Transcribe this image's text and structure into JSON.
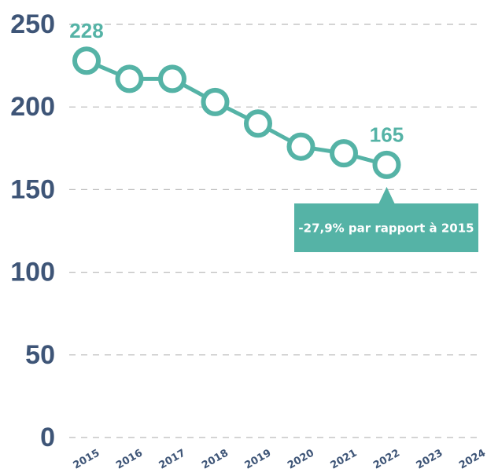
{
  "chart_data": {
    "type": "line",
    "categories": [
      "2015",
      "2016",
      "2017",
      "2018",
      "2019",
      "2020",
      "2021",
      "2022",
      "2023",
      "2024"
    ],
    "series": [
      {
        "color": "#55b3a6",
        "values": [
          228,
          217,
          217,
          203,
          190,
          176,
          172,
          165,
          null,
          null
        ],
        "value_labels": [
          "228",
          null,
          null,
          null,
          null,
          null,
          null,
          "165",
          null,
          null
        ]
      }
    ],
    "ylim": [
      0,
      250
    ],
    "yticks": [
      0,
      50,
      100,
      150,
      200,
      250
    ],
    "grid": true,
    "highlight_index": 7,
    "annotation": {
      "text": "-27,9% par rapport à 2015",
      "index": 7
    }
  }
}
